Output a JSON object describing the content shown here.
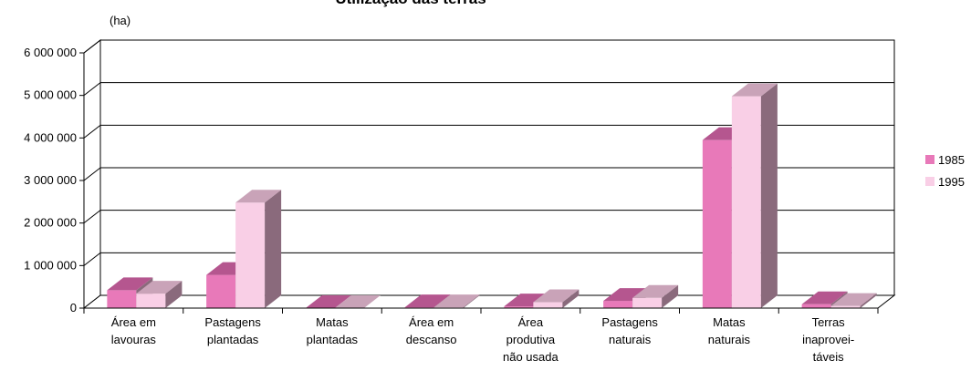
{
  "chart_data": {
    "type": "bar",
    "title": "Utilização das terras",
    "unit_label": "(ha)",
    "categories": [
      [
        "Área em",
        "lavouras"
      ],
      [
        "Pastagens",
        "plantadas"
      ],
      [
        "Matas",
        "plantadas"
      ],
      [
        "Área em",
        "descanso"
      ],
      [
        "Área",
        "produtiva",
        "não usada"
      ],
      [
        "Pastagens",
        "naturais"
      ],
      [
        "Matas",
        "naturais"
      ],
      [
        "Terras",
        "inaprovei-",
        "táveis"
      ]
    ],
    "series": [
      {
        "name": "1985",
        "color": "#e879b9",
        "values": [
          420000,
          780000,
          0,
          20000,
          40000,
          170000,
          3950000,
          90000
        ]
      },
      {
        "name": "1995",
        "color": "#f9cfe6",
        "values": [
          340000,
          2480000,
          0,
          20000,
          140000,
          240000,
          4980000,
          50000
        ]
      }
    ],
    "ylim": [
      0,
      6000000
    ],
    "yticks": [
      "0",
      "1 000 000",
      "2 000 000",
      "3 000 000",
      "4 000 000",
      "5 000 000",
      "6 000 000"
    ],
    "grid": true,
    "legend_position": "right",
    "colors": {
      "top_1985": "#b5568f",
      "top_1995": "#c9a3b8",
      "side": "#8a6a7c",
      "wall_side": "#ffffff"
    }
  }
}
